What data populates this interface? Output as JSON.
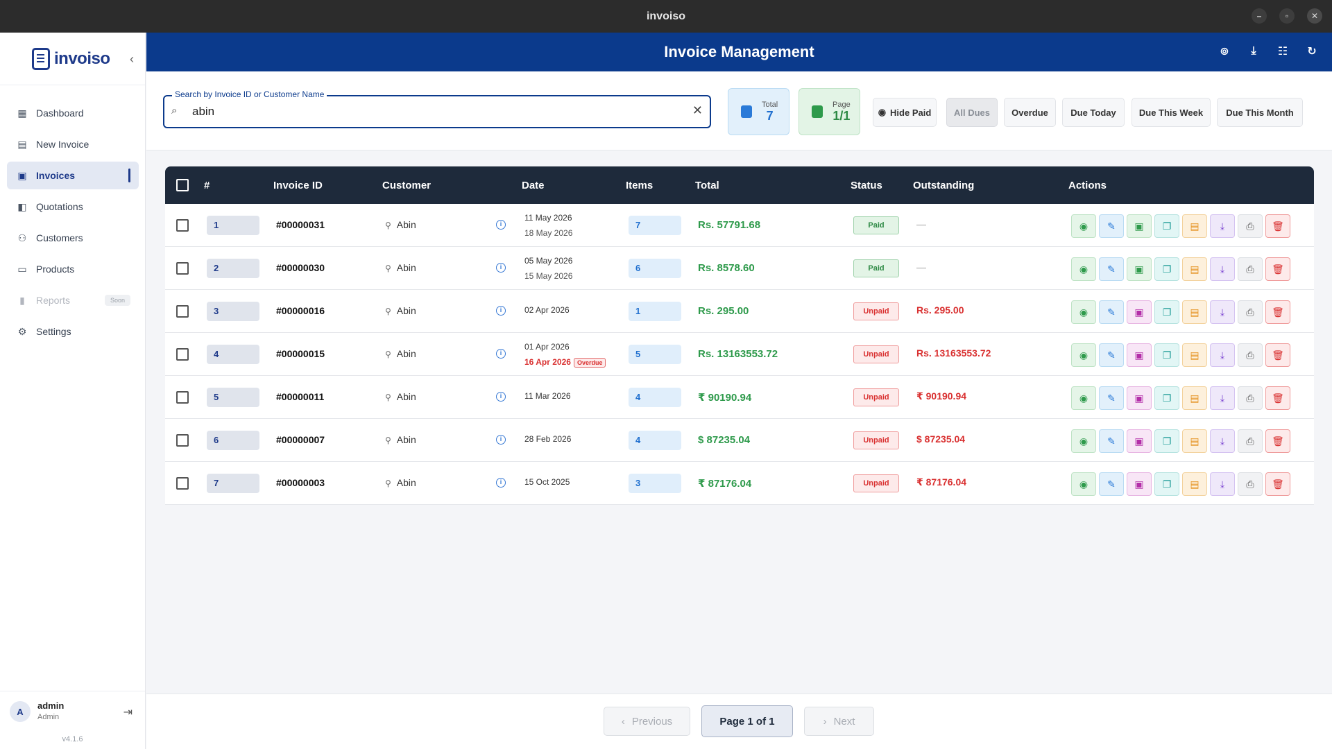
{
  "window": {
    "title": "invoiso"
  },
  "sidebar": {
    "brand": "invoiso",
    "items": [
      {
        "label": "Dashboard",
        "icon": "dashboard-icon"
      },
      {
        "label": "New Invoice",
        "icon": "new-invoice-icon"
      },
      {
        "label": "Invoices",
        "icon": "invoices-icon",
        "active": true
      },
      {
        "label": "Quotations",
        "icon": "quotations-icon"
      },
      {
        "label": "Customers",
        "icon": "customers-icon"
      },
      {
        "label": "Products",
        "icon": "products-icon"
      },
      {
        "label": "Reports",
        "icon": "reports-icon",
        "disabled": true,
        "badge": "Soon"
      },
      {
        "label": "Settings",
        "icon": "settings-icon"
      }
    ],
    "user": {
      "initial": "A",
      "name": "admin",
      "role": "Admin"
    },
    "version": "v4.1.6"
  },
  "header": {
    "title": "Invoice Management"
  },
  "search": {
    "label": "Search by Invoice ID or Customer Name",
    "value": "abin"
  },
  "stats": {
    "total_label": "Total",
    "total_value": "7",
    "page_label": "Page",
    "page_value": "1/1"
  },
  "filters": {
    "hide_paid": "Hide Paid",
    "all_dues": "All Dues",
    "overdue": "Overdue",
    "due_today": "Due Today",
    "due_week": "Due This Week",
    "due_month": "Due This Month"
  },
  "table": {
    "headers": {
      "num": "#",
      "invoice_id": "Invoice ID",
      "customer": "Customer",
      "date": "Date",
      "items": "Items",
      "total": "Total",
      "status": "Status",
      "outstanding": "Outstanding",
      "actions": "Actions"
    },
    "rows": [
      {
        "num": "1",
        "id": "#00000031",
        "customer": "Abin",
        "date": "11 May 2026",
        "due": "18 May 2026",
        "items": "7",
        "total": "Rs. 57791.68",
        "status": "Paid",
        "outstanding": "—"
      },
      {
        "num": "2",
        "id": "#00000030",
        "customer": "Abin",
        "date": "05 May 2026",
        "due": "15 May 2026",
        "items": "6",
        "total": "Rs. 8578.60",
        "status": "Paid",
        "outstanding": "—"
      },
      {
        "num": "3",
        "id": "#00000016",
        "customer": "Abin",
        "date": "02 Apr 2026",
        "due": "",
        "items": "1",
        "total": "Rs. 295.00",
        "status": "Unpaid",
        "outstanding": "Rs. 295.00"
      },
      {
        "num": "4",
        "id": "#00000015",
        "customer": "Abin",
        "date": "01 Apr 2026",
        "due": "16 Apr 2026",
        "overdue_tag": "Overdue",
        "items": "5",
        "total": "Rs. 13163553.72",
        "status": "Unpaid",
        "outstanding": "Rs. 13163553.72"
      },
      {
        "num": "5",
        "id": "#00000011",
        "customer": "Abin",
        "date": "11 Mar 2026",
        "due": "",
        "items": "4",
        "total": "₹ 90190.94",
        "status": "Unpaid",
        "outstanding": "₹ 90190.94"
      },
      {
        "num": "6",
        "id": "#00000007",
        "customer": "Abin",
        "date": "28 Feb 2026",
        "due": "",
        "items": "4",
        "total": "$ 87235.04",
        "status": "Unpaid",
        "outstanding": "$ 87235.04"
      },
      {
        "num": "7",
        "id": "#00000003",
        "customer": "Abin",
        "date": "15 Oct 2025",
        "due": "",
        "items": "3",
        "total": "₹ 87176.04",
        "status": "Unpaid",
        "outstanding": "₹ 87176.04"
      }
    ]
  },
  "pagination": {
    "previous": "Previous",
    "current": "Page 1 of 1",
    "next": "Next"
  },
  "colors": {
    "primary": "#0b3a8c",
    "table_header": "#1e2a3b",
    "paid": "#2e9a4b",
    "unpaid": "#d93030"
  }
}
